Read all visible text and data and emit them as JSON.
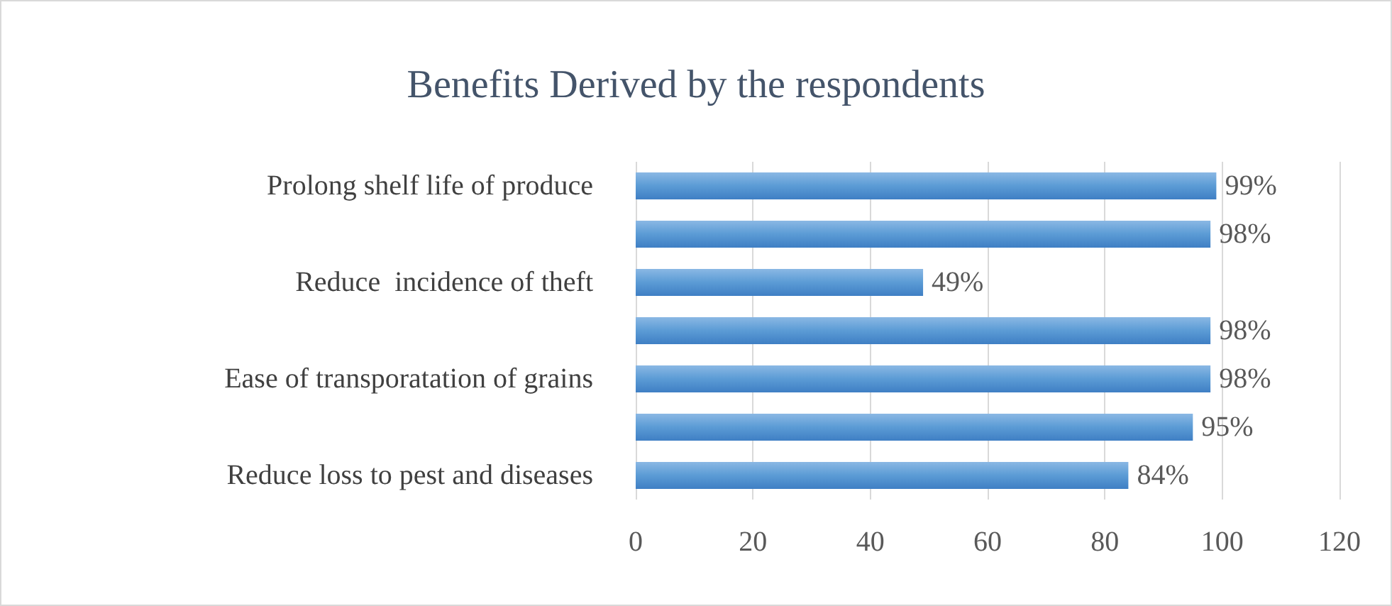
{
  "chart_data": {
    "type": "bar",
    "orientation": "horizontal",
    "title": "Benefits Derived by the respondents",
    "categories": [
      "Prolong shelf life of produce",
      null,
      "Reduce  incidence of theft",
      null,
      "Ease of transporatation of grains",
      null,
      "Reduce loss to pest and diseases"
    ],
    "values": [
      99,
      98,
      49,
      98,
      98,
      95,
      84
    ],
    "value_labels": [
      "99%",
      "98%",
      "49%",
      "98%",
      "98%",
      "95%",
      "84%"
    ],
    "color": "#5b9bd5",
    "xlim": [
      0,
      120
    ],
    "xticks": [
      0,
      20,
      40,
      60,
      80,
      100,
      120
    ],
    "grid": "x"
  }
}
